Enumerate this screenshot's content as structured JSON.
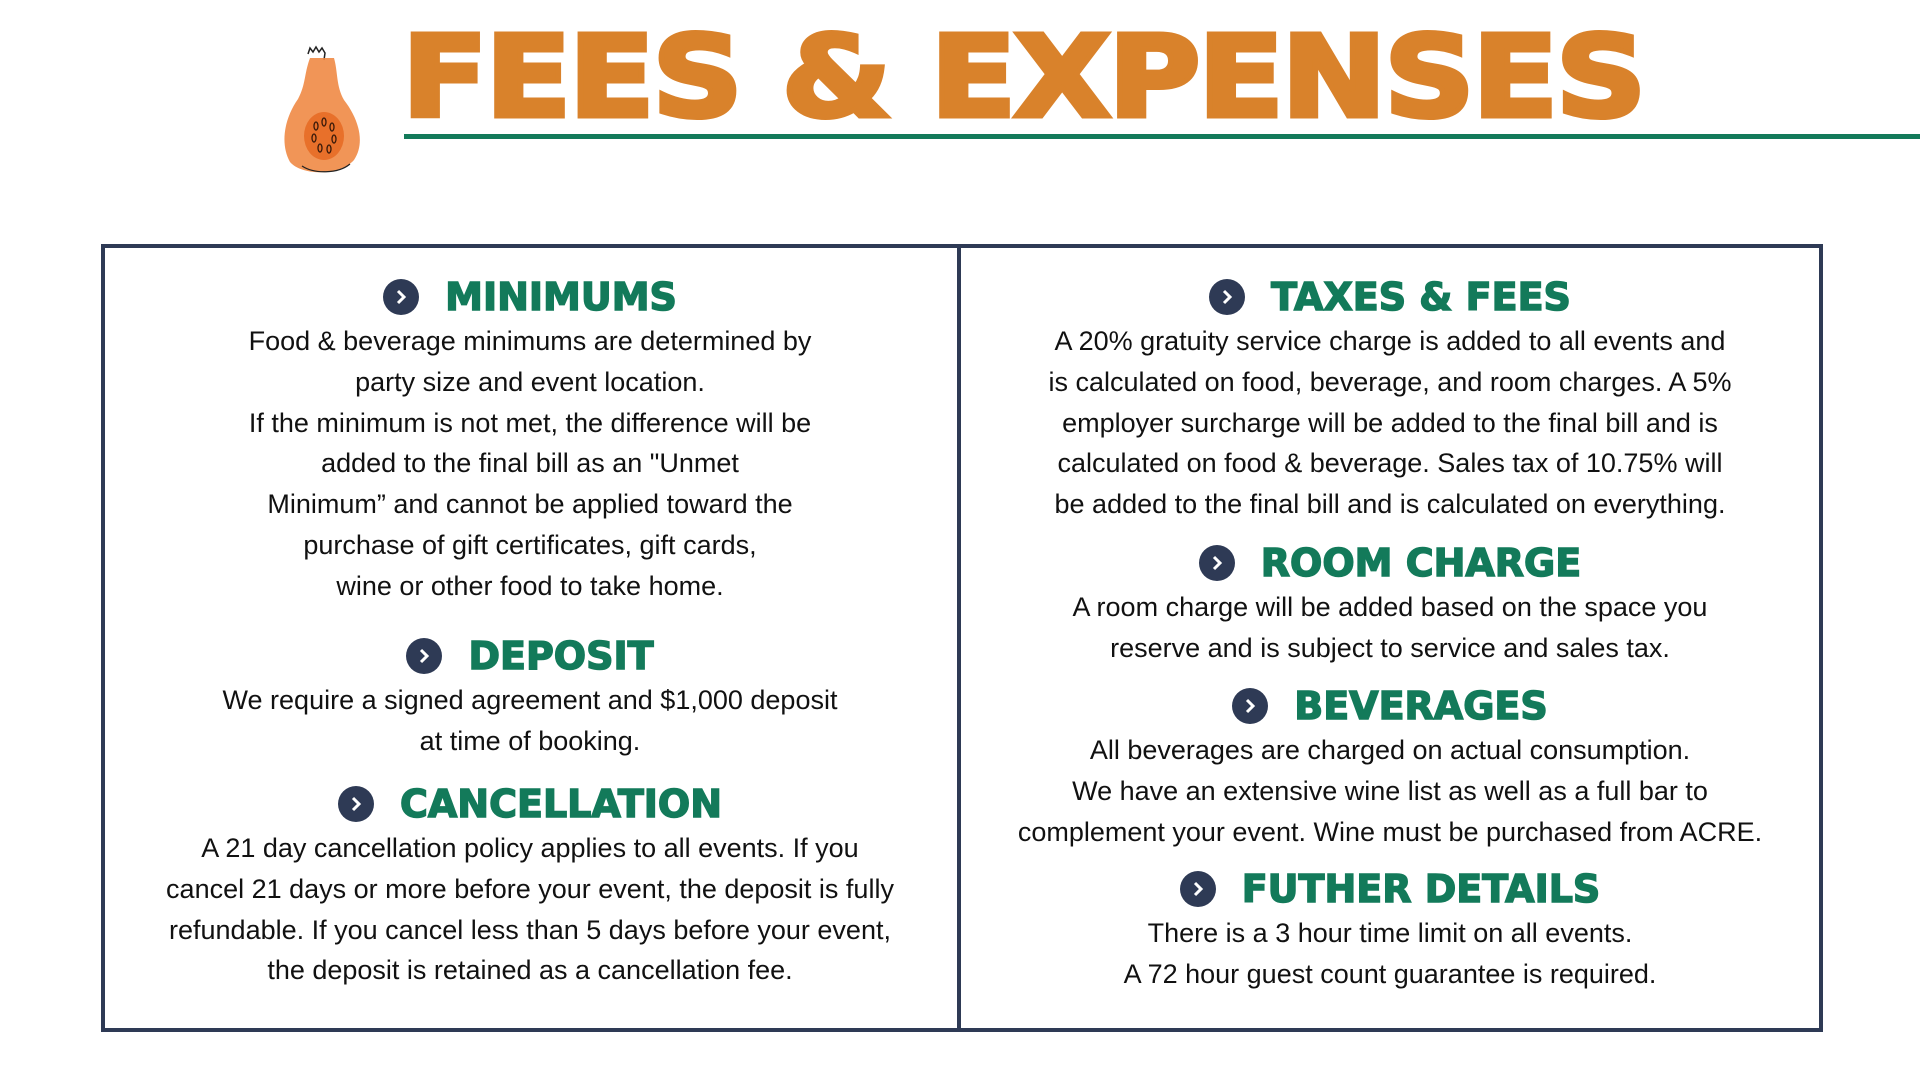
{
  "header": {
    "title": "FEES & EXPENSES"
  },
  "colors": {
    "orange": "#D9822B",
    "green": "#137A5A",
    "navy": "#2E3A55"
  },
  "left": [
    {
      "heading": "MINIMUMS",
      "lines": [
        "Food & beverage minimums are determined by",
        "party size and event location.",
        "If the minimum is not met, the difference will be",
        "added to the final bill as an \"Unmet",
        "Minimum” and cannot be applied toward the",
        "purchase of gift certificates, gift cards,",
        "wine or other food to take home."
      ]
    },
    {
      "heading": "DEPOSIT",
      "lines": [
        "We require a signed agreement and $1,000 deposit",
        "at time of booking."
      ]
    },
    {
      "heading": "CANCELLATION",
      "lines": [
        "A 21 day cancellation policy applies to all events. If you",
        "cancel 21 days or more before your event, the deposit is fully",
        "refundable. If you cancel less than 5 days before your event,",
        "the deposit is retained as a cancellation fee."
      ]
    }
  ],
  "right": [
    {
      "heading": "TAXES & FEES",
      "lines": [
        "A 20% gratuity service charge is added to all events and",
        "is calculated on food, beverage, and room charges. A 5%",
        "employer surcharge will be added to the final bill and is",
        "calculated on food & beverage. Sales tax of 10.75% will",
        "be added to the final bill and is calculated on everything."
      ]
    },
    {
      "heading": "ROOM CHARGE",
      "lines": [
        "A room charge will be added based on the space you",
        "reserve and is subject to service and sales tax."
      ]
    },
    {
      "heading": "BEVERAGES",
      "lines": [
        "All beverages are charged on actual consumption.",
        "We have an extensive wine list as well as a full bar to",
        "complement your event. Wine must be purchased from ACRE."
      ]
    },
    {
      "heading": "FUTHER DETAILS",
      "lines": [
        "There is a 3 hour time limit on all events.",
        "A 72 hour guest count guarantee is required."
      ]
    }
  ]
}
